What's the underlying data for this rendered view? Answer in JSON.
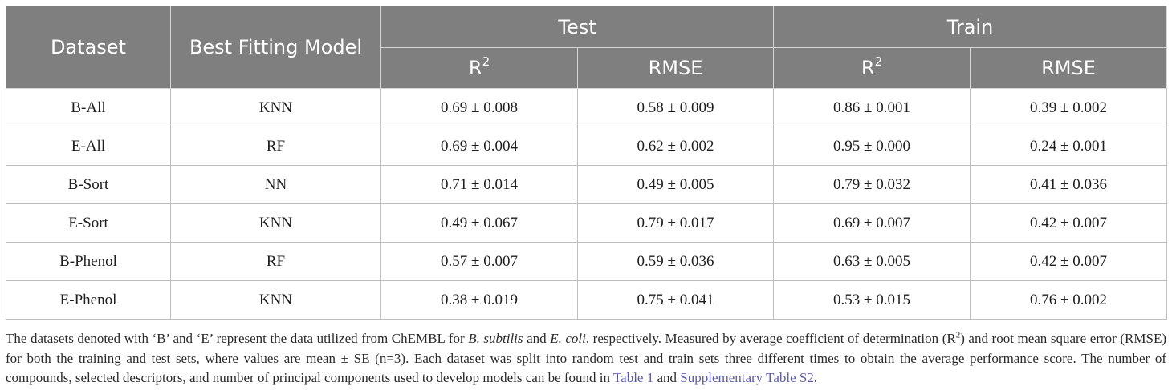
{
  "table": {
    "headers": {
      "dataset": "Dataset",
      "model": "Best Fitting Model",
      "test": "Test",
      "train": "Train",
      "r2_base": "R",
      "r2_sup": "2",
      "rmse": "RMSE"
    },
    "rows": [
      {
        "dataset": "B-All",
        "model": "KNN",
        "test_r2": "0.69 ± 0.008",
        "test_rmse": "0.58 ± 0.009",
        "train_r2": "0.86 ± 0.001",
        "train_rmse": "0.39 ± 0.002"
      },
      {
        "dataset": "E-All",
        "model": "RF",
        "test_r2": "0.69 ± 0.004",
        "test_rmse": "0.62 ± 0.002",
        "train_r2": "0.95 ± 0.000",
        "train_rmse": "0.24 ± 0.001"
      },
      {
        "dataset": "B-Sort",
        "model": "NN",
        "test_r2": "0.71 ± 0.014",
        "test_rmse": "0.49 ± 0.005",
        "train_r2": "0.79 ± 0.032",
        "train_rmse": "0.41 ± 0.036"
      },
      {
        "dataset": "E-Sort",
        "model": "KNN",
        "test_r2": "0.49 ± 0.067",
        "test_rmse": "0.79 ± 0.017",
        "train_r2": "0.69 ± 0.007",
        "train_rmse": "0.42 ± 0.007"
      },
      {
        "dataset": "B-Phenol",
        "model": "RF",
        "test_r2": "0.57 ± 0.007",
        "test_rmse": "0.59 ± 0.036",
        "train_r2": "0.63 ± 0.005",
        "train_rmse": "0.42 ± 0.007"
      },
      {
        "dataset": "E-Phenol",
        "model": "KNN",
        "test_r2": "0.38 ± 0.019",
        "test_rmse": "0.75 ± 0.041",
        "train_r2": "0.53 ± 0.015",
        "train_rmse": "0.76 ± 0.002"
      }
    ]
  },
  "caption": {
    "p1": "The datasets denoted with ‘B’ and ‘E’ represent the data utilized from ChEMBL for ",
    "bsub": "B. subtilis",
    "p2": " and ",
    "ecoli": "E. coli",
    "p3": ", respectively. Measured by average coefficient of determination (R",
    "sup": "2",
    "p4": ") and root mean square error (RMSE) for both the training and test sets, where values are mean ± SE (n=3). Each dataset was split into random test and train sets three different times to obtain the average performance score. The number of compounds, selected descriptors, and number of principal components used to develop models can be found in ",
    "link1": "Table 1",
    "p5": " and ",
    "link2": "Supplementary Table S2",
    "p6": "."
  },
  "colors": {
    "header_bg": "#7f7f7f",
    "header_text": "#ffffff",
    "link": "#5b5ba8"
  }
}
